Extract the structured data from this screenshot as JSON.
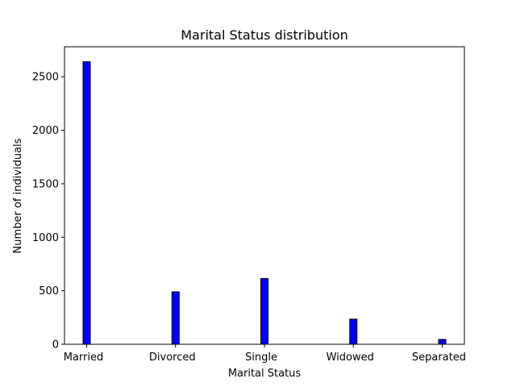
{
  "chart_data": {
    "type": "bar",
    "title": "Marital Status distribution",
    "xlabel": "Marital Status",
    "ylabel": "Number of individuals",
    "categories": [
      "Married",
      "Divorced",
      "Single",
      "Widowed",
      "Separated"
    ],
    "values": [
      2640,
      490,
      615,
      235,
      45
    ],
    "ylim": [
      0,
      2780
    ],
    "yticks": [
      0,
      500,
      1000,
      1500,
      2000,
      2500
    ],
    "bar_color": "#0000ff",
    "edge_color": "#000000",
    "grid": false,
    "legend": "none"
  }
}
